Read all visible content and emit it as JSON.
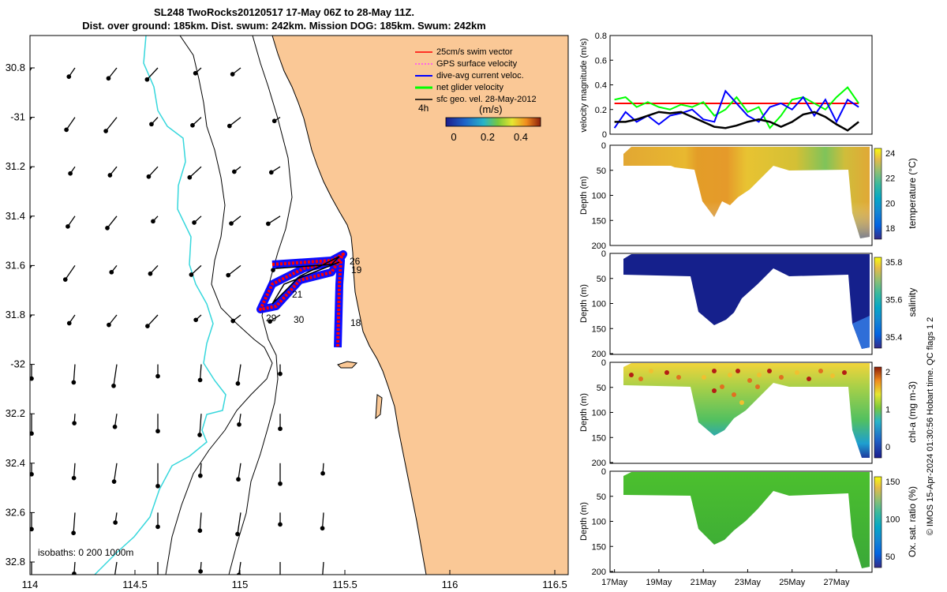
{
  "title_line1": "SL248 TwoRocks20120517 17-May 06Z to 28-May 11Z.",
  "title_line2": "Dist. over ground: 185km. Dist. swum: 242km. Mission DOG: 185km. Swum: 242km",
  "colors": {
    "land": "#fac896",
    "coast": "#000000",
    "isobath_1000": "#36d7dc",
    "glider_blue": "#0000ff",
    "glider_red": "#ff0000",
    "net_green": "#00ff00"
  },
  "map": {
    "lon_ticks": [
      "114",
      "114.5",
      "115",
      "115.5",
      "116",
      "116.5"
    ],
    "lat_ticks": [
      "30.8",
      "-31",
      "31.2",
      "31.4",
      "31.6",
      "31.8",
      "-32",
      "32.2",
      "32.4",
      "32.6",
      "32.8"
    ],
    "legend": [
      "25cm/s swim vector",
      "GPS surface velocity",
      "dive-avg current veloc.",
      "net glider velocity",
      "sfc geo. vel. 28-May-2012"
    ],
    "legend_hours": "4h",
    "speed_units": "(m/s)",
    "colorbar_ticks": [
      "0",
      "0.2",
      "0.4"
    ],
    "day_labels": [
      "26",
      "19",
      "21",
      "29",
      "30",
      "18"
    ],
    "isobaths_label": "isobaths: 0   200  1000m"
  },
  "chart_data": [
    {
      "type": "line",
      "title": "",
      "ylabel": "velocity magnitude (m/s)",
      "ylim": [
        0,
        0.8
      ],
      "yticks": [
        "0",
        "0.2",
        "0.4",
        "0.6",
        "0.8"
      ],
      "x": [
        17,
        17.5,
        18,
        18.5,
        19,
        19.5,
        20,
        20.5,
        21,
        21.5,
        22,
        22.5,
        23,
        23.5,
        24,
        24.5,
        25,
        25.5,
        26,
        26.5,
        27,
        27.5,
        28
      ],
      "series": [
        {
          "name": "25cm/s swim vector",
          "color": "#ff0000",
          "values": [
            0.25,
            0.25,
            0.25,
            0.25,
            0.25,
            0.25,
            0.25,
            0.25,
            0.25,
            0.25,
            0.25,
            0.25,
            0.25,
            0.25,
            0.25,
            0.25,
            0.25,
            0.25,
            0.25,
            0.25,
            0.25,
            0.25,
            0.25
          ]
        },
        {
          "name": "net glider velocity",
          "color": "#00ff00",
          "values": [
            0.28,
            0.3,
            0.22,
            0.26,
            0.22,
            0.2,
            0.24,
            0.22,
            0.26,
            0.15,
            0.2,
            0.3,
            0.18,
            0.22,
            0.05,
            0.15,
            0.28,
            0.3,
            0.25,
            0.2,
            0.3,
            0.38,
            0.25
          ]
        },
        {
          "name": "dive-avg current veloc.",
          "color": "#0000ff",
          "values": [
            0.05,
            0.18,
            0.1,
            0.15,
            0.08,
            0.15,
            0.17,
            0.2,
            0.12,
            0.1,
            0.35,
            0.25,
            0.15,
            0.1,
            0.22,
            0.25,
            0.2,
            0.3,
            0.15,
            0.28,
            0.1,
            0.28,
            0.22
          ]
        },
        {
          "name": "sfc geo. vel.",
          "color": "#000000",
          "values": [
            0.1,
            0.1,
            0.12,
            0.15,
            0.18,
            0.17,
            0.18,
            0.14,
            0.1,
            0.06,
            0.05,
            0.07,
            0.1,
            0.12,
            0.1,
            0.06,
            0.1,
            0.16,
            0.18,
            0.14,
            0.08,
            0.03,
            0.1
          ]
        }
      ]
    },
    {
      "type": "heatmap",
      "ylabel": "Depth (m)",
      "ylim": [
        0,
        200
      ],
      "yticks": [
        "0",
        "50",
        "100",
        "150",
        "200"
      ],
      "colorbar_label": "temperature (°C)",
      "colorbar_ticks": [
        "18",
        "20",
        "22",
        "24"
      ],
      "clim": [
        17,
        25
      ],
      "palette": "parula"
    },
    {
      "type": "heatmap",
      "ylabel": "Depth (m)",
      "ylim": [
        0,
        200
      ],
      "yticks": [
        "0",
        "50",
        "100",
        "150",
        "200"
      ],
      "colorbar_label": "salinity",
      "colorbar_ticks": [
        "35.4",
        "35.6",
        "35.8"
      ],
      "clim": [
        35.3,
        36.0
      ],
      "palette": "parula"
    },
    {
      "type": "heatmap",
      "ylabel": "Depth (m)",
      "ylim": [
        0,
        200
      ],
      "yticks": [
        "0",
        "50",
        "100",
        "150",
        "200"
      ],
      "colorbar_label": "chl-a (mg m-3)",
      "colorbar_ticks": [
        "0",
        "1",
        "2"
      ],
      "clim": [
        0,
        2
      ],
      "palette": "parula"
    },
    {
      "type": "heatmap",
      "ylabel": "Depth (m)",
      "ylim": [
        0,
        200
      ],
      "yticks": [
        "0",
        "50",
        "100",
        "150",
        "200"
      ],
      "colorbar_label": "Ox. sat. ratio (%)",
      "colorbar_ticks": [
        "50",
        "100",
        "150"
      ],
      "clim": [
        30,
        170
      ],
      "palette": "parula"
    }
  ],
  "time_axis": [
    "17May",
    "19May",
    "21May",
    "23May",
    "25May",
    "27May"
  ],
  "side_note": "© IMOS 15-Apr-2024 01:30:56 Hobart time. QC flags 1  2"
}
